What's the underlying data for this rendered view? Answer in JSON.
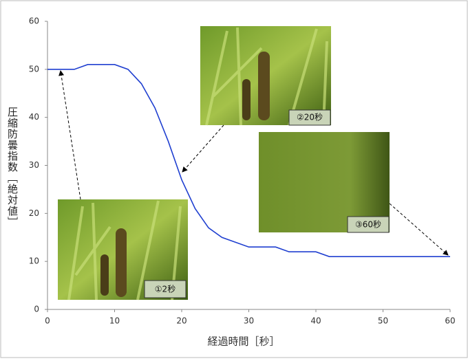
{
  "chart_data": {
    "type": "line",
    "xlabel": "経過時間［秒］",
    "ylabel": "圧縮防曇指数［絶対値］",
    "x": [
      0,
      2,
      4,
      6,
      8,
      10,
      12,
      14,
      16,
      18,
      20,
      22,
      24,
      26,
      28,
      30,
      32,
      34,
      36,
      38,
      40,
      42,
      44,
      46,
      48,
      50,
      52,
      54,
      56,
      58,
      60
    ],
    "series": [
      {
        "color": "#1f3fd0",
        "values": [
          50,
          50,
          50,
          51,
          51,
          51,
          50,
          47,
          42,
          35,
          27,
          21,
          17,
          15,
          14,
          13,
          13,
          13,
          12,
          12,
          12,
          11,
          11,
          11,
          11,
          11,
          11,
          11,
          11,
          11,
          11
        ]
      }
    ],
    "xlim": [
      0,
      60
    ],
    "xticks": [
      0,
      10,
      20,
      30,
      40,
      50,
      60
    ],
    "ylim": [
      0,
      60
    ],
    "yticks": [
      0,
      10,
      20,
      30,
      40,
      50,
      60
    ],
    "grid": false,
    "annotations": [
      "①2秒",
      "②20秒",
      "③60秒"
    ]
  }
}
